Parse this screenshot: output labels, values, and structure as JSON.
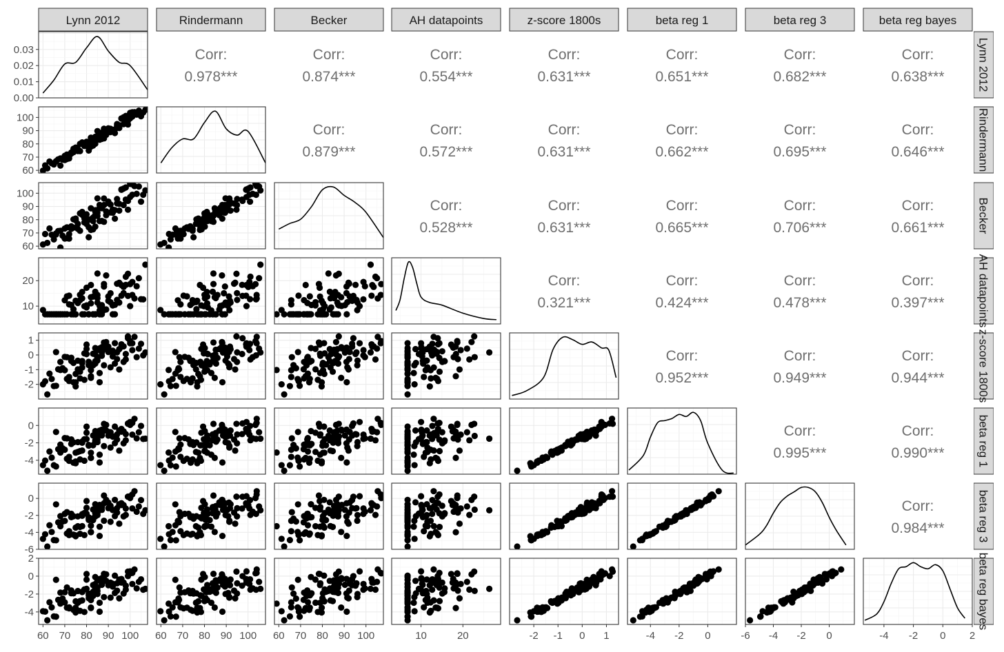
{
  "chart_data": {
    "type": "scatter",
    "layout": "pairs-matrix",
    "variables": [
      "Lynn 2012",
      "Rindermann",
      "Becker",
      "AH datapoints",
      "z-score 1800s",
      "beta reg 1",
      "beta reg 3",
      "beta reg bayes"
    ],
    "corr_label": "Corr:",
    "correlations": [
      {
        "row": 0,
        "col": 1,
        "value": "0.978***"
      },
      {
        "row": 0,
        "col": 2,
        "value": "0.874***"
      },
      {
        "row": 0,
        "col": 3,
        "value": "0.554***"
      },
      {
        "row": 0,
        "col": 4,
        "value": "0.631***"
      },
      {
        "row": 0,
        "col": 5,
        "value": "0.651***"
      },
      {
        "row": 0,
        "col": 6,
        "value": "0.682***"
      },
      {
        "row": 0,
        "col": 7,
        "value": "0.638***"
      },
      {
        "row": 1,
        "col": 2,
        "value": "0.879***"
      },
      {
        "row": 1,
        "col": 3,
        "value": "0.572***"
      },
      {
        "row": 1,
        "col": 4,
        "value": "0.631***"
      },
      {
        "row": 1,
        "col": 5,
        "value": "0.662***"
      },
      {
        "row": 1,
        "col": 6,
        "value": "0.695***"
      },
      {
        "row": 1,
        "col": 7,
        "value": "0.646***"
      },
      {
        "row": 2,
        "col": 3,
        "value": "0.528***"
      },
      {
        "row": 2,
        "col": 4,
        "value": "0.631***"
      },
      {
        "row": 2,
        "col": 5,
        "value": "0.665***"
      },
      {
        "row": 2,
        "col": 6,
        "value": "0.706***"
      },
      {
        "row": 2,
        "col": 7,
        "value": "0.661***"
      },
      {
        "row": 3,
        "col": 4,
        "value": "0.321***"
      },
      {
        "row": 3,
        "col": 5,
        "value": "0.424***"
      },
      {
        "row": 3,
        "col": 6,
        "value": "0.478***"
      },
      {
        "row": 3,
        "col": 7,
        "value": "0.397***"
      },
      {
        "row": 4,
        "col": 5,
        "value": "0.952***"
      },
      {
        "row": 4,
        "col": 6,
        "value": "0.949***"
      },
      {
        "row": 4,
        "col": 7,
        "value": "0.944***"
      },
      {
        "row": 5,
        "col": 6,
        "value": "0.995***"
      },
      {
        "row": 5,
        "col": 7,
        "value": "0.990***"
      },
      {
        "row": 6,
        "col": 7,
        "value": "0.984***"
      }
    ],
    "x_axes": [
      {
        "range": [
          58,
          108
        ],
        "ticks": [
          "60",
          "70",
          "80",
          "90",
          "100"
        ],
        "tick_values": [
          60,
          70,
          80,
          90,
          100
        ]
      },
      {
        "range": [
          58,
          108
        ],
        "ticks": [
          "60",
          "70",
          "80",
          "90",
          "100"
        ],
        "tick_values": [
          60,
          70,
          80,
          90,
          100
        ]
      },
      {
        "range": [
          58,
          108
        ],
        "ticks": [
          "60",
          "70",
          "80",
          "90",
          "100"
        ],
        "tick_values": [
          60,
          70,
          80,
          90,
          100
        ]
      },
      {
        "range": [
          3,
          29
        ],
        "ticks": [
          "10",
          "20"
        ],
        "tick_values": [
          10,
          20
        ]
      },
      {
        "range": [
          -3.0,
          1.5
        ],
        "ticks": [
          "-2",
          "-1",
          "0",
          "1"
        ],
        "tick_values": [
          -2,
          -1,
          0,
          1
        ]
      },
      {
        "range": [
          -5.6,
          2.0
        ],
        "ticks": [
          "-4",
          "-2",
          "0"
        ],
        "tick_values": [
          -4,
          -2,
          0
        ]
      },
      {
        "range": [
          -6.0,
          1.8
        ],
        "ticks": [
          "-6",
          "-4",
          "-2",
          "0"
        ],
        "tick_values": [
          -6,
          -4,
          -2,
          0
        ]
      },
      {
        "range": [
          -5.4,
          2.0
        ],
        "ticks": [
          "-4",
          "-2",
          "0",
          "2"
        ],
        "tick_values": [
          -4,
          -2,
          0,
          2
        ]
      }
    ],
    "y_axes": [
      {
        "range": [
          0,
          0.041
        ],
        "ticks": [
          "0.00",
          "0.01",
          "0.02",
          "0.03"
        ],
        "tick_values": [
          0,
          0.01,
          0.02,
          0.03
        ]
      },
      {
        "range": [
          58,
          108
        ],
        "ticks": [
          "60",
          "70",
          "80",
          "90",
          "100"
        ],
        "tick_values": [
          60,
          70,
          80,
          90,
          100
        ]
      },
      {
        "range": [
          58,
          108
        ],
        "ticks": [
          "60",
          "70",
          "80",
          "90",
          "100"
        ],
        "tick_values": [
          60,
          70,
          80,
          90,
          100
        ]
      },
      {
        "range": [
          3,
          29
        ],
        "ticks": [
          "10",
          "20"
        ],
        "tick_values": [
          10,
          20
        ]
      },
      {
        "range": [
          -3.0,
          1.5
        ],
        "ticks": [
          "-2",
          "-1",
          "0",
          "1"
        ],
        "tick_values": [
          -2,
          -1,
          0,
          1
        ]
      },
      {
        "range": [
          -5.6,
          2.0
        ],
        "ticks": [
          "-4",
          "-2",
          "0"
        ],
        "tick_values": [
          -4,
          -2,
          0
        ]
      },
      {
        "range": [
          -6.0,
          1.8
        ],
        "ticks": [
          "-6",
          "-4",
          "-2",
          "0"
        ],
        "tick_values": [
          -6,
          -4,
          -2,
          0
        ]
      },
      {
        "range": [
          -5.4,
          2.0
        ],
        "ticks": [
          "-4",
          "-2",
          "0",
          "2"
        ],
        "tick_values": [
          -4,
          -2,
          0,
          2
        ]
      }
    ],
    "densities": [
      {
        "var": 0,
        "x": [
          60,
          65,
          70,
          75,
          80,
          85,
          90,
          95,
          100,
          108
        ],
        "y": [
          0.003,
          0.011,
          0.021,
          0.022,
          0.031,
          0.038,
          0.029,
          0.022,
          0.02,
          0.005
        ]
      },
      {
        "var": 1,
        "x": [
          60,
          65,
          70,
          75,
          80,
          85,
          90,
          95,
          100,
          108
        ],
        "y": [
          0.008,
          0.02,
          0.027,
          0.027,
          0.04,
          0.049,
          0.035,
          0.03,
          0.033,
          0.008
        ]
      },
      {
        "var": 2,
        "x": [
          60,
          65,
          70,
          75,
          80,
          85,
          90,
          95,
          100,
          108
        ],
        "y": [
          0.014,
          0.018,
          0.021,
          0.03,
          0.042,
          0.044,
          0.038,
          0.033,
          0.026,
          0.008
        ]
      },
      {
        "var": 3,
        "x": [
          4,
          5,
          6,
          7,
          8,
          9,
          10,
          12,
          15,
          20,
          25,
          28
        ],
        "y": [
          0.05,
          0.09,
          0.17,
          0.23,
          0.21,
          0.15,
          0.1,
          0.08,
          0.07,
          0.04,
          0.02,
          0.016
        ]
      },
      {
        "var": 4,
        "x": [
          -2.9,
          -2.3,
          -1.6,
          -1.2,
          -0.8,
          -0.4,
          0.0,
          0.4,
          0.8,
          1.1,
          1.4
        ],
        "y": [
          0.03,
          0.07,
          0.18,
          0.42,
          0.52,
          0.5,
          0.46,
          0.48,
          0.43,
          0.41,
          0.18
        ]
      },
      {
        "var": 5,
        "x": [
          -5.5,
          -4.5,
          -4.0,
          -3.5,
          -3.0,
          -2.5,
          -2.0,
          -1.5,
          -1.0,
          -0.5,
          0.0,
          1.0,
          1.8
        ],
        "y": [
          0.02,
          0.09,
          0.18,
          0.25,
          0.26,
          0.27,
          0.29,
          0.28,
          0.3,
          0.26,
          0.15,
          0.02,
          0.005
        ]
      },
      {
        "var": 6,
        "x": [
          -6.0,
          -5.0,
          -4.5,
          -4.0,
          -3.5,
          -3.0,
          -2.5,
          -2.0,
          -1.5,
          -1.0,
          -0.5,
          0.0,
          0.5,
          1.2
        ],
        "y": [
          0.02,
          0.07,
          0.11,
          0.17,
          0.22,
          0.25,
          0.27,
          0.29,
          0.29,
          0.27,
          0.22,
          0.15,
          0.09,
          0.02
        ]
      },
      {
        "var": 7,
        "x": [
          -5.3,
          -4.5,
          -4.0,
          -3.5,
          -3.0,
          -2.5,
          -2.0,
          -1.5,
          -1.0,
          -0.5,
          0.0,
          0.5,
          1.0,
          1.5
        ],
        "y": [
          0.02,
          0.05,
          0.11,
          0.2,
          0.27,
          0.28,
          0.3,
          0.28,
          0.27,
          0.29,
          0.26,
          0.17,
          0.08,
          0.03
        ]
      }
    ],
    "lynn_values": [
      60,
      61,
      62,
      63,
      64,
      65,
      66,
      66,
      67,
      68,
      68,
      69,
      70,
      70,
      71,
      71,
      72,
      72,
      73,
      73,
      74,
      74,
      75,
      75,
      75,
      76,
      76,
      77,
      77,
      78,
      78,
      78,
      79,
      79,
      80,
      80,
      80,
      81,
      81,
      81,
      82,
      82,
      82,
      83,
      83,
      83,
      84,
      84,
      84,
      84,
      85,
      85,
      85,
      85,
      86,
      86,
      86,
      87,
      87,
      87,
      88,
      88,
      88,
      89,
      89,
      90,
      90,
      91,
      91,
      92,
      92,
      93,
      93,
      94,
      94,
      95,
      95,
      96,
      96,
      97,
      97,
      98,
      98,
      99,
      99,
      100,
      100,
      101,
      101,
      102,
      103,
      104,
      105,
      106,
      107
    ],
    "grid": true,
    "legend": "none"
  }
}
